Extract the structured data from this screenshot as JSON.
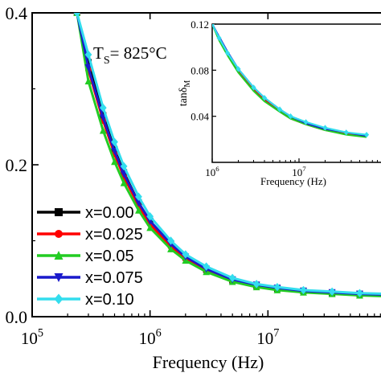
{
  "chart_data": [
    {
      "type": "line",
      "xlabel": "Frequency (Hz)",
      "ylabel": "",
      "x_scale": "log",
      "xlim": [
        100000,
        100000000
      ],
      "ylim": [
        0.0,
        0.4
      ],
      "x_ticks": [
        {
          "value": 100000,
          "base": "10",
          "exp": "5"
        },
        {
          "value": 1000000,
          "base": "10",
          "exp": "6"
        },
        {
          "value": 10000000,
          "base": "10",
          "exp": "7"
        }
      ],
      "y_ticks": [
        {
          "value": 0.0,
          "label": "0.0"
        },
        {
          "value": 0.2,
          "label": "0.2"
        },
        {
          "value": 0.4,
          "label": "0.4"
        }
      ],
      "annotation": {
        "main": "T",
        "sub": "S",
        "rest": "= 825°C"
      },
      "legend_position": "bottom-left",
      "x": [
        240000,
        300000,
        400000,
        500000,
        600000,
        800000,
        1000000,
        1500000,
        2000000,
        3000000,
        5000000,
        8000000,
        12000000,
        20000000,
        35000000,
        60000000,
        100000000
      ],
      "series": [
        {
          "name": "x=0.00",
          "color": "#000000",
          "marker": "square",
          "values": [
            0.4,
            0.335,
            0.265,
            0.22,
            0.19,
            0.15,
            0.125,
            0.095,
            0.078,
            0.062,
            0.048,
            0.041,
            0.037,
            0.034,
            0.031,
            0.03,
            0.029
          ]
        },
        {
          "name": "x=0.025",
          "color": "#ff0000",
          "marker": "circle",
          "values": [
            0.4,
            0.325,
            0.258,
            0.214,
            0.184,
            0.146,
            0.122,
            0.092,
            0.076,
            0.061,
            0.047,
            0.04,
            0.036,
            0.033,
            0.031,
            0.029,
            0.028
          ]
        },
        {
          "name": "x=0.05",
          "color": "#22cc22",
          "marker": "triangle-up",
          "values": [
            0.4,
            0.31,
            0.245,
            0.204,
            0.176,
            0.14,
            0.117,
            0.089,
            0.074,
            0.059,
            0.046,
            0.039,
            0.035,
            0.032,
            0.03,
            0.028,
            0.027
          ]
        },
        {
          "name": "x=0.075",
          "color": "#1a1acc",
          "marker": "triangle-down",
          "values": [
            0.4,
            0.328,
            0.262,
            0.218,
            0.188,
            0.15,
            0.126,
            0.096,
            0.079,
            0.063,
            0.049,
            0.042,
            0.038,
            0.034,
            0.032,
            0.03,
            0.029
          ]
        },
        {
          "name": "x=0.10",
          "color": "#33ddee",
          "marker": "diamond",
          "values": [
            0.4,
            0.345,
            0.275,
            0.23,
            0.198,
            0.158,
            0.132,
            0.1,
            0.082,
            0.066,
            0.051,
            0.043,
            0.039,
            0.035,
            0.033,
            0.031,
            0.03
          ]
        }
      ]
    },
    {
      "type": "line",
      "xlabel": "Frequency (Hz)",
      "ylabel": {
        "main": "tanδ",
        "sub": "M"
      },
      "x_scale": "log",
      "xlim": [
        1000000,
        100000000
      ],
      "ylim": [
        0.0,
        0.12
      ],
      "x_ticks": [
        {
          "value": 1000000,
          "base": "10",
          "exp": "6"
        },
        {
          "value": 10000000,
          "base": "10",
          "exp": "7"
        }
      ],
      "y_ticks": [
        {
          "value": 0.04,
          "label": "0.04"
        },
        {
          "value": 0.08,
          "label": "0.08"
        },
        {
          "value": 0.12,
          "label": "0.12"
        }
      ],
      "x": [
        1000000,
        1200000,
        1500000,
        2000000,
        3000000,
        4000000,
        6000000,
        8000000,
        12000000,
        20000000,
        35000000,
        60000000
      ],
      "series": [
        {
          "color": "#000000",
          "values": [
            0.12,
            0.108,
            0.095,
            0.08,
            0.064,
            0.055,
            0.045,
            0.039,
            0.034,
            0.029,
            0.025,
            0.023
          ]
        },
        {
          "color": "#ff0000",
          "values": [
            0.12,
            0.107,
            0.094,
            0.079,
            0.063,
            0.054,
            0.044,
            0.038,
            0.033,
            0.028,
            0.025,
            0.023
          ]
        },
        {
          "color": "#22cc22",
          "values": [
            0.12,
            0.106,
            0.093,
            0.078,
            0.062,
            0.053,
            0.044,
            0.038,
            0.033,
            0.028,
            0.024,
            0.022
          ]
        },
        {
          "color": "#1a1acc",
          "values": [
            0.12,
            0.109,
            0.096,
            0.081,
            0.065,
            0.056,
            0.046,
            0.04,
            0.034,
            0.029,
            0.026,
            0.023
          ]
        },
        {
          "color": "#33ddee",
          "values": [
            0.12,
            0.108,
            0.095,
            0.081,
            0.065,
            0.056,
            0.046,
            0.04,
            0.035,
            0.03,
            0.026,
            0.024
          ]
        }
      ]
    }
  ]
}
